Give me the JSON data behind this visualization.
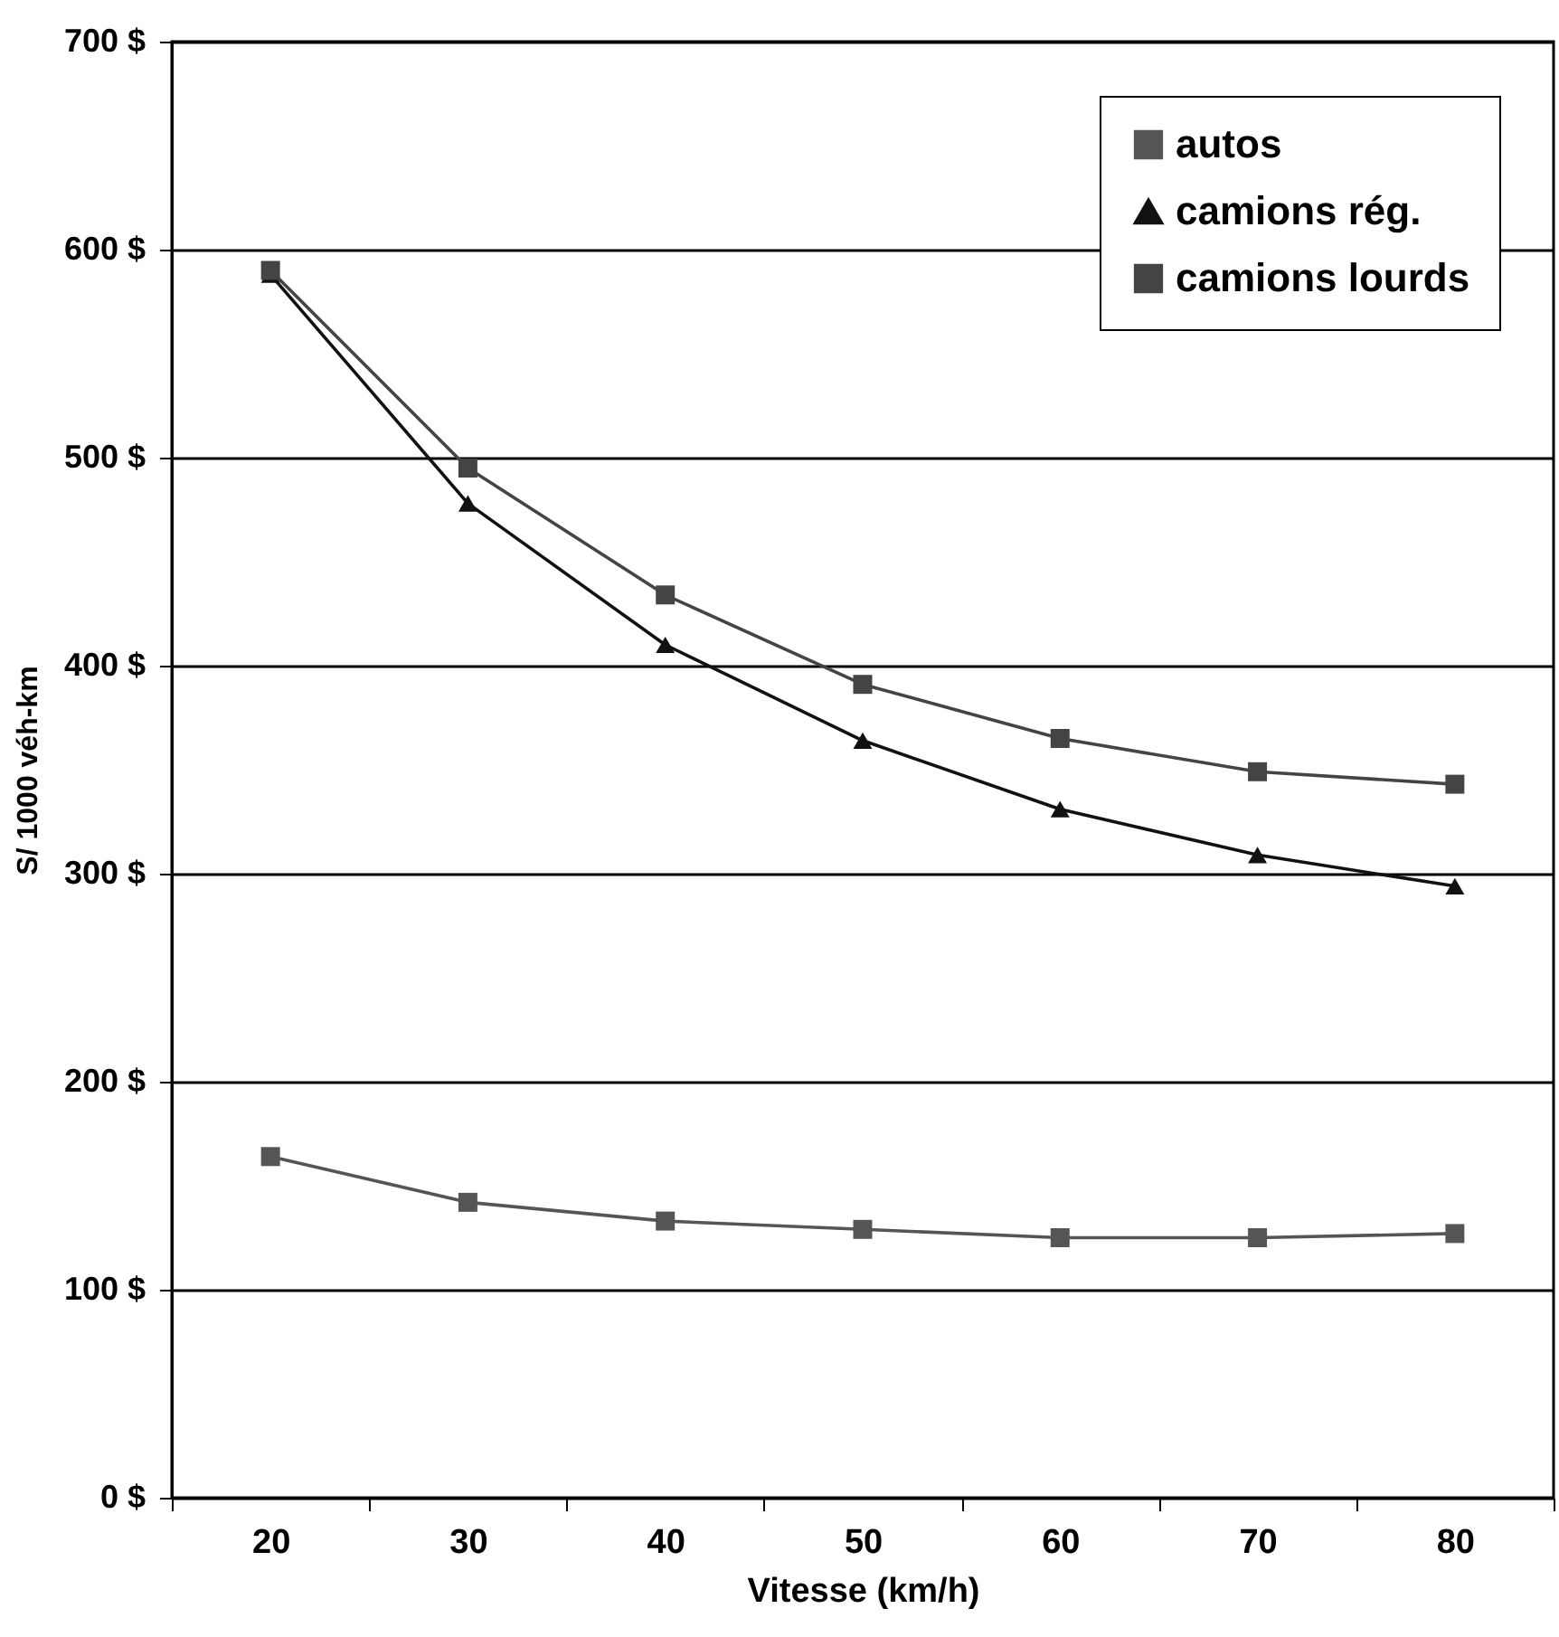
{
  "chart_data": {
    "type": "line",
    "xlabel": "Vitesse (km/h)",
    "ylabel": "S/ 1000 véh-km",
    "categories": [
      "20",
      "30",
      "40",
      "50",
      "60",
      "70",
      "80"
    ],
    "series": [
      {
        "name": "autos",
        "color": "#555555",
        "marker": "square",
        "values": [
          164,
          142,
          133,
          129,
          125,
          125,
          127
        ]
      },
      {
        "name": "camions rég.",
        "color": "#111111",
        "marker": "triangle",
        "values": [
          588,
          478,
          410,
          364,
          331,
          309,
          294
        ]
      },
      {
        "name": "camions lourds",
        "color": "#444444",
        "marker": "square",
        "values": [
          590,
          495,
          434,
          391,
          365,
          349,
          343
        ]
      }
    ],
    "ylim": [
      0,
      700
    ],
    "yticks": [
      {
        "value": 0,
        "label": "0 $"
      },
      {
        "value": 100,
        "label": "100 $"
      },
      {
        "value": 200,
        "label": "200 $"
      },
      {
        "value": 300,
        "label": "300 $"
      },
      {
        "value": 400,
        "label": "400 $"
      },
      {
        "value": 500,
        "label": "500 $"
      },
      {
        "value": 600,
        "label": "600 $"
      },
      {
        "value": 700,
        "label": "700 $"
      }
    ],
    "grid": "y",
    "legend": "top right",
    "line_style": "solid"
  }
}
